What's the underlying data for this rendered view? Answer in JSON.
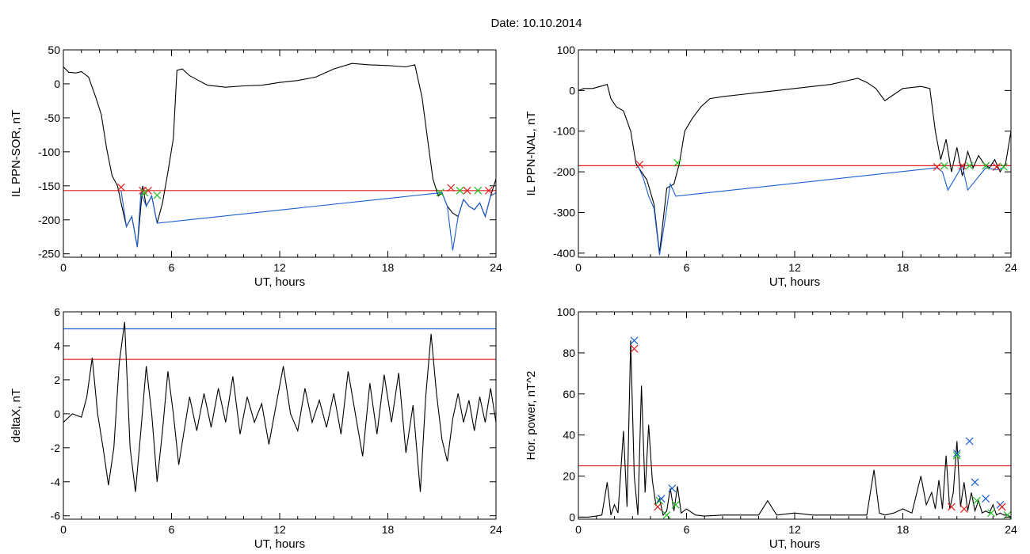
{
  "title": "Date:  10.10.2014",
  "chart_data": [
    {
      "type": "line",
      "ylabel": "IL PPN-SOR, nT",
      "xlabel": "UT, hours",
      "xlim": [
        0,
        24
      ],
      "ylim": [
        -255,
        50
      ],
      "xticks": [
        0,
        6,
        12,
        18,
        24
      ],
      "yticks": [
        50,
        0,
        -50,
        -100,
        -150,
        -200,
        -250
      ],
      "series": [
        {
          "color": "#000000",
          "x": [
            0,
            0.3,
            0.7,
            1,
            1.4,
            1.8,
            2.1,
            2.4,
            2.7,
            3.0,
            3.2,
            3.5,
            3.8,
            4.1,
            4.4,
            4.6,
            4.9,
            5.2,
            5.5,
            5.8,
            6.1,
            6.3,
            6.6,
            7,
            7.5,
            8,
            9,
            10,
            11,
            12,
            13,
            14,
            15,
            16,
            17,
            18,
            19,
            19.5,
            19.9,
            20.2,
            20.5,
            20.8,
            21.0,
            21.3,
            21.6,
            21.9,
            22.2,
            22.5,
            22.8,
            23.1,
            23.4,
            23.7,
            24
          ],
          "y": [
            25,
            17,
            16,
            18,
            10,
            -20,
            -45,
            -95,
            -135,
            -150,
            -175,
            -210,
            -195,
            -240,
            -150,
            -180,
            -165,
            -205,
            -175,
            -130,
            -80,
            20,
            22,
            12,
            5,
            -2,
            -5,
            -3,
            -2,
            2,
            5,
            10,
            22,
            30,
            28,
            27,
            25,
            28,
            -20,
            -80,
            -140,
            -165,
            -160,
            -180,
            -190,
            -195,
            -170,
            -180,
            -185,
            -175,
            -195,
            -165,
            -140
          ]
        },
        {
          "color": "#1a5fd0",
          "x": [
            3.2,
            3.5,
            3.8,
            4.1,
            4.3,
            4.6,
            4.9,
            5.2,
            21.0,
            21.3,
            21.6,
            21.9,
            22.2,
            22.5,
            22.8,
            23.1,
            23.4,
            23.7,
            24
          ],
          "y": [
            -157,
            -210,
            -195,
            -240,
            -160,
            -180,
            -165,
            -205,
            -160,
            -180,
            -245,
            -195,
            -170,
            -180,
            -185,
            -175,
            -195,
            -165,
            -160
          ]
        }
      ],
      "threshold_lines": [
        {
          "y": -157,
          "color": "#e02020"
        }
      ],
      "markers": [
        {
          "x": 3.2,
          "y": -152,
          "color": "#e02020"
        },
        {
          "x": 4.4,
          "y": -157,
          "color": "#e02020"
        },
        {
          "x": 4.7,
          "y": -157,
          "color": "#e02020"
        },
        {
          "x": 4.5,
          "y": -160,
          "color": "#20c020"
        },
        {
          "x": 5.2,
          "y": -164,
          "color": "#20c020"
        },
        {
          "x": 20.9,
          "y": -160,
          "color": "#20c020"
        },
        {
          "x": 21.5,
          "y": -153,
          "color": "#e02020"
        },
        {
          "x": 22.0,
          "y": -157,
          "color": "#20c020"
        },
        {
          "x": 22.4,
          "y": -157,
          "color": "#e02020"
        },
        {
          "x": 23.0,
          "y": -157,
          "color": "#20c020"
        },
        {
          "x": 23.6,
          "y": -157,
          "color": "#e02020"
        }
      ]
    },
    {
      "type": "line",
      "ylabel": "IL PPN-NAL, nT",
      "xlabel": "UT, hours",
      "xlim": [
        0,
        24
      ],
      "ylim": [
        -410,
        100
      ],
      "xticks": [
        0,
        6,
        12,
        18,
        24
      ],
      "yticks": [
        100,
        0,
        -100,
        -200,
        -300,
        -400
      ],
      "series": [
        {
          "color": "#000000",
          "x": [
            0,
            0.3,
            0.8,
            1.2,
            1.6,
            1.8,
            2.1,
            2.5,
            2.9,
            3.2,
            3.5,
            3.8,
            4.2,
            4.5,
            4.9,
            5.3,
            5.6,
            5.9,
            6.3,
            6.8,
            7.3,
            8,
            9,
            10,
            11,
            12,
            13,
            14,
            15,
            15.5,
            16,
            16.5,
            17,
            17.5,
            18,
            19,
            19.5,
            19.8,
            20.1,
            20.4,
            20.7,
            21,
            21.3,
            21.6,
            21.9,
            22.2,
            22.5,
            22.8,
            23.1,
            23.4,
            23.7,
            24
          ],
          "y": [
            0,
            5,
            5,
            10,
            15,
            -20,
            -40,
            -50,
            -100,
            -180,
            -200,
            -220,
            -280,
            -400,
            -240,
            -230,
            -180,
            -100,
            -70,
            -40,
            -20,
            -15,
            -10,
            -5,
            0,
            5,
            10,
            15,
            25,
            30,
            20,
            5,
            -25,
            -10,
            5,
            10,
            5,
            -100,
            -170,
            -120,
            -200,
            -140,
            -210,
            -150,
            -190,
            -160,
            -180,
            -190,
            -170,
            -200,
            -180,
            -100
          ]
        },
        {
          "color": "#1a5fd0",
          "x": [
            3.3,
            3.6,
            3.9,
            4.2,
            4.5,
            4.8,
            5.1,
            5.4,
            19.9,
            20.2,
            20.5,
            21.3,
            21.6,
            22.6,
            23.2,
            23.6
          ],
          "y": [
            -185,
            -215,
            -260,
            -290,
            -405,
            -320,
            -230,
            -260,
            -190,
            -200,
            -245,
            -185,
            -245,
            -190,
            -195,
            -190
          ]
        }
      ],
      "threshold_lines": [
        {
          "y": -185,
          "color": "#e02020"
        }
      ],
      "markers": [
        {
          "x": 3.4,
          "y": -182,
          "color": "#e02020"
        },
        {
          "x": 5.5,
          "y": -178,
          "color": "#20c020"
        },
        {
          "x": 19.9,
          "y": -188,
          "color": "#e02020"
        },
        {
          "x": 20.3,
          "y": -185,
          "color": "#20c020"
        },
        {
          "x": 21.3,
          "y": -185,
          "color": "#e02020"
        },
        {
          "x": 21.7,
          "y": -185,
          "color": "#20c020"
        },
        {
          "x": 22.6,
          "y": -185,
          "color": "#20c020"
        },
        {
          "x": 23.2,
          "y": -188,
          "color": "#e02020"
        },
        {
          "x": 23.6,
          "y": -188,
          "color": "#20c020"
        }
      ]
    },
    {
      "type": "line",
      "ylabel": "deltaX, nT",
      "xlabel": "UT, hours",
      "xlim": [
        0,
        24
      ],
      "ylim": [
        -6.2,
        6
      ],
      "xticks": [
        0,
        6,
        12,
        18,
        24
      ],
      "yticks": [
        6,
        4,
        2,
        0,
        -2,
        -4,
        -6
      ],
      "series": [
        {
          "color": "#000000",
          "x": [
            0,
            0.5,
            1,
            1.3,
            1.6,
            1.9,
            2.2,
            2.5,
            2.8,
            3.1,
            3.4,
            3.7,
            4.0,
            4.3,
            4.6,
            4.9,
            5.2,
            5.5,
            5.8,
            6.1,
            6.4,
            6.7,
            7,
            7.4,
            7.8,
            8.2,
            8.6,
            9,
            9.4,
            9.8,
            10.2,
            10.6,
            11,
            11.4,
            11.8,
            12.2,
            12.6,
            13,
            13.4,
            13.8,
            14.2,
            14.6,
            15,
            15.4,
            15.8,
            16.2,
            16.6,
            17,
            17.4,
            17.8,
            18.2,
            18.6,
            19,
            19.4,
            19.8,
            20.1,
            20.4,
            20.7,
            21,
            21.3,
            21.6,
            21.9,
            22.2,
            22.5,
            22.8,
            23.1,
            23.4,
            23.7,
            24
          ],
          "y": [
            -0.5,
            0,
            -0.2,
            1,
            3.3,
            0,
            -2,
            -4.2,
            -2,
            3,
            5.4,
            -2,
            -4.6,
            -1,
            2.8,
            0,
            -4,
            -1,
            2.5,
            0,
            -3,
            -1,
            1,
            -1,
            1.2,
            -0.8,
            1.5,
            -0.5,
            2.2,
            -1.2,
            1,
            -0.5,
            0.6,
            -1.8,
            0.5,
            2.8,
            0,
            -1,
            1.5,
            -0.5,
            0.8,
            -0.8,
            1.2,
            -1.2,
            2.5,
            0,
            -2.5,
            1.8,
            -1.2,
            2.3,
            -0.5,
            2.4,
            -2.3,
            0.5,
            -4.6,
            1,
            4.7,
            1.2,
            -1.5,
            -2.8,
            -0.3,
            1.2,
            -0.5,
            0.8,
            -1,
            1,
            -0.5,
            1.5,
            -0.5
          ]
        }
      ],
      "threshold_lines": [
        {
          "y": 5,
          "color": "#1a5fd0"
        },
        {
          "y": 3.2,
          "color": "#e02020"
        }
      ],
      "markers": []
    },
    {
      "type": "line",
      "ylabel": "Hor. power, nT^2",
      "xlabel": "UT, hours",
      "xlim": [
        0,
        24
      ],
      "ylim": [
        -1,
        100
      ],
      "xticks": [
        0,
        6,
        12,
        18,
        24
      ],
      "yticks": [
        100,
        80,
        60,
        40,
        20,
        0
      ],
      "series": [
        {
          "color": "#000000",
          "x": [
            0,
            0.5,
            1,
            1.3,
            1.6,
            1.8,
            2.0,
            2.2,
            2.5,
            2.7,
            2.9,
            3.1,
            3.3,
            3.5,
            3.7,
            3.9,
            4.1,
            4.3,
            4.5,
            4.7,
            4.9,
            5.1,
            5.3,
            5.5,
            5.7,
            6,
            6.5,
            7,
            8,
            9,
            10,
            10.5,
            11,
            12,
            13,
            14,
            15,
            16,
            16.4,
            16.7,
            17,
            17.5,
            18,
            18.5,
            19,
            19.3,
            19.6,
            19.8,
            20,
            20.2,
            20.4,
            20.6,
            20.8,
            21,
            21.2,
            21.4,
            21.6,
            21.8,
            22,
            22.2,
            22.4,
            22.6,
            22.8,
            23,
            23.2,
            23.4,
            23.6,
            23.8,
            24
          ],
          "y": [
            0,
            0,
            0.5,
            1,
            17,
            1,
            6,
            2,
            42,
            5,
            86,
            20,
            1,
            64,
            12,
            45,
            18,
            6,
            9,
            1,
            3,
            14,
            3,
            15,
            2,
            4,
            1,
            0.5,
            1,
            1,
            1,
            8,
            1,
            2,
            1,
            1,
            1,
            1,
            23,
            2,
            1,
            2,
            4,
            2,
            20,
            6,
            12,
            4,
            18,
            4,
            30,
            4,
            12,
            37,
            5,
            17,
            3,
            12,
            3,
            8,
            2,
            3,
            2,
            6,
            1,
            2,
            1,
            1,
            0
          ]
        }
      ],
      "threshold_lines": [
        {
          "y": 25,
          "color": "#e02020"
        }
      ],
      "markers": [
        {
          "x": 3.1,
          "y": 86,
          "color": "#1a5fd0"
        },
        {
          "x": 3.1,
          "y": 82,
          "color": "#e02020"
        },
        {
          "x": 4.4,
          "y": 5,
          "color": "#e02020"
        },
        {
          "x": 4.5,
          "y": 8,
          "color": "#20c020"
        },
        {
          "x": 4.6,
          "y": 9,
          "color": "#1a5fd0"
        },
        {
          "x": 4.9,
          "y": 1,
          "color": "#20c020"
        },
        {
          "x": 5.2,
          "y": 14,
          "color": "#1a5fd0"
        },
        {
          "x": 5.4,
          "y": 6,
          "color": "#20c020"
        },
        {
          "x": 20.7,
          "y": 5,
          "color": "#e02020"
        },
        {
          "x": 21.0,
          "y": 30,
          "color": "#20c020"
        },
        {
          "x": 21.0,
          "y": 31,
          "color": "#1a5fd0"
        },
        {
          "x": 21.4,
          "y": 4,
          "color": "#e02020"
        },
        {
          "x": 21.7,
          "y": 37,
          "color": "#1a5fd0"
        },
        {
          "x": 22.0,
          "y": 17,
          "color": "#1a5fd0"
        },
        {
          "x": 22.1,
          "y": 8,
          "color": "#20c020"
        },
        {
          "x": 22.6,
          "y": 9,
          "color": "#1a5fd0"
        },
        {
          "x": 22.9,
          "y": 2,
          "color": "#20c020"
        },
        {
          "x": 23.4,
          "y": 6,
          "color": "#1a5fd0"
        },
        {
          "x": 23.5,
          "y": 5,
          "color": "#e02020"
        },
        {
          "x": 23.8,
          "y": 1,
          "color": "#20c020"
        }
      ]
    }
  ]
}
